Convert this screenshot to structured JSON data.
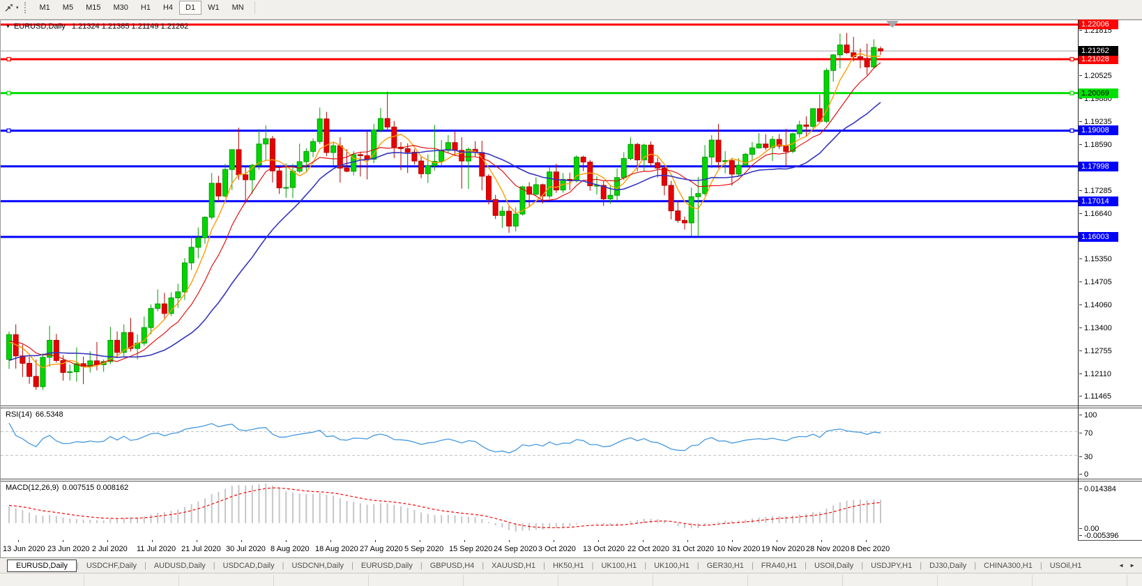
{
  "toolbar": {
    "timeframes": [
      "M1",
      "M5",
      "M15",
      "M30",
      "H1",
      "H4",
      "D1",
      "W1",
      "MN"
    ],
    "active_timeframe": "D1"
  },
  "chart": {
    "symbol_label": "EURUSD,Daily",
    "quote_text": "1.21324 1.21385 1.21149 1.21262"
  },
  "price_axis": {
    "ticks": [
      "1.21815",
      "1.20525",
      "1.19880",
      "1.19235",
      "1.18590",
      "1.17285",
      "1.16640",
      "1.15350",
      "1.14705",
      "1.14060",
      "1.13400",
      "1.12755",
      "1.12110",
      "1.11465"
    ],
    "current_price_label": "1.21262"
  },
  "rsi_panel": {
    "name": "RSI(14)",
    "value": "66.5348",
    "axis_labels": [
      "100",
      "70",
      "30",
      "0"
    ],
    "axis_values": [
      100,
      70,
      30,
      0
    ],
    "levels": [
      70,
      30
    ],
    "line_color": "#4498DF"
  },
  "macd_panel": {
    "name": "MACD(12,26,9)",
    "values_text": "0.007515 0.008162",
    "axis_labels": [
      "0.014384",
      "0.00",
      "-0.005396"
    ],
    "axis_values": [
      0.014384,
      0,
      -0.005396
    ],
    "histogram_color": "#C6C6C6",
    "signal_color": "#FF0000"
  },
  "date_axis": [
    "13 Jun 2020",
    "23 Jun 2020",
    "2 Jul 2020",
    "11 Jul 2020",
    "21 Jul 2020",
    "30 Jul 2020",
    "8 Aug 2020",
    "18 Aug 2020",
    "27 Aug 2020",
    "5 Sep 2020",
    "15 Sep 2020",
    "24 Sep 2020",
    "3 Oct 2020",
    "13 Oct 2020",
    "22 Oct 2020",
    "31 Oct 2020",
    "10 Nov 2020",
    "19 Nov 2020",
    "28 Nov 2020",
    "8 Dec 2020"
  ],
  "tabs": [
    "EURUSD,Daily",
    "USDCHF,Daily",
    "AUDUSD,Daily",
    "USDCAD,Daily",
    "USDCNH,Daily",
    "EURUSD,Daily",
    "GBPUSD,H4",
    "XAUUSD,H1",
    "HK50,H1",
    "UK100,H1",
    "UK100,H1",
    "GER30,H1",
    "FRA40,H1",
    "USOil,Daily",
    "USDJPY,H1",
    "DJ30,Daily",
    "CHINA300,H1",
    "USOil,H1"
  ],
  "active_tab_index": 0,
  "chart_data": {
    "type": "candlestick",
    "symbol": "EURUSD",
    "timeframe": "Daily",
    "visible_price_range": [
      1.1124,
      1.2215
    ],
    "bull_color": "#00D500",
    "bull_border": "#009C00",
    "bear_color": "#E80000",
    "bear_border": "#B40000",
    "current_price": 1.21262,
    "current_price_line_color": "#9C9C9C",
    "horizontal_lines": [
      {
        "price": 1.22006,
        "label": "1.22006",
        "color": "#FF0000",
        "text_color": "#FFFFFF",
        "handles": false
      },
      {
        "price": 1.21028,
        "label": "1.21028",
        "color": "#FF0000",
        "text_color": "#FFFFFF",
        "handles": true
      },
      {
        "price": 1.20069,
        "label": "1.20069",
        "color": "#00E000",
        "text_color": "#000000",
        "handles": true
      },
      {
        "price": 1.19008,
        "label": "1.19008",
        "color": "#0000FF",
        "text_color": "#FFFFFF",
        "handles": true
      },
      {
        "price": 1.17998,
        "label": "1.17998",
        "color": "#0000FF",
        "text_color": "#FFFFFF",
        "handles": false
      },
      {
        "price": 1.17014,
        "label": "1.17014",
        "color": "#0000FF",
        "text_color": "#FFFFFF",
        "handles": false
      },
      {
        "price": 1.16003,
        "label": "1.16003",
        "color": "#0000FF",
        "text_color": "#FFFFFF",
        "handles": false
      }
    ],
    "moving_averages": [
      {
        "name": "ma-fast",
        "type": "SMA",
        "period": 5,
        "color": "#FF9B00",
        "width": 1.4
      },
      {
        "name": "ma-medium",
        "type": "SMA",
        "period": 10,
        "color": "#E00000",
        "width": 1.1
      },
      {
        "name": "ma-slow",
        "type": "SMA",
        "period": 21,
        "color": "#3434BE",
        "width": 1.6
      }
    ],
    "indicators": [
      {
        "type": "RSI",
        "period": 14,
        "value": 66.5348,
        "levels": [
          70,
          30
        ]
      },
      {
        "type": "MACD",
        "fast": 12,
        "slow": 26,
        "signal": 9,
        "macd_value": 0.007515,
        "signal_value": 0.008162,
        "axis_max": 0.014384,
        "axis_min": -0.005396
      }
    ],
    "warmup_closes": [
      1.098,
      1.1,
      1.102,
      1.104,
      1.106,
      1.1075,
      1.1085,
      1.1095,
      1.11,
      1.111,
      1.112,
      1.114,
      1.116,
      1.118,
      1.12,
      1.1215,
      1.1225,
      1.1232,
      1.1238,
      1.124,
      1.126,
      1.128,
      1.13,
      1.1315,
      1.133,
      1.1318,
      1.13,
      1.129,
      1.1296,
      1.1304
    ],
    "candles": [
      [
        1.1254,
        1.1333,
        1.1227,
        1.1324
      ],
      [
        1.1324,
        1.1353,
        1.1228,
        1.1264
      ],
      [
        1.1264,
        1.1296,
        1.1204,
        1.1243
      ],
      [
        1.1243,
        1.1262,
        1.1185,
        1.1206
      ],
      [
        1.1206,
        1.1254,
        1.1168,
        1.1177
      ],
      [
        1.1177,
        1.1271,
        1.1168,
        1.126
      ],
      [
        1.126,
        1.1349,
        1.1233,
        1.1308
      ],
      [
        1.1308,
        1.1326,
        1.1245,
        1.1251
      ],
      [
        1.1251,
        1.1266,
        1.1194,
        1.1217
      ],
      [
        1.1217,
        1.124,
        1.1194,
        1.1219
      ],
      [
        1.1219,
        1.1288,
        1.1191,
        1.1242
      ],
      [
        1.1242,
        1.1262,
        1.1184,
        1.1234
      ],
      [
        1.1234,
        1.1277,
        1.1217,
        1.125
      ],
      [
        1.125,
        1.1303,
        1.1223,
        1.1239
      ],
      [
        1.1239,
        1.1254,
        1.1219,
        1.1248
      ],
      [
        1.1248,
        1.1346,
        1.1241,
        1.1308
      ],
      [
        1.1308,
        1.1333,
        1.1259,
        1.1274
      ],
      [
        1.1274,
        1.1353,
        1.1263,
        1.133
      ],
      [
        1.133,
        1.1371,
        1.1276,
        1.1285
      ],
      [
        1.1285,
        1.1325,
        1.1254,
        1.13
      ],
      [
        1.13,
        1.1375,
        1.1292,
        1.1344
      ],
      [
        1.1344,
        1.1409,
        1.1325,
        1.1398
      ],
      [
        1.1398,
        1.1452,
        1.139,
        1.1411
      ],
      [
        1.1411,
        1.1442,
        1.137,
        1.1384
      ],
      [
        1.1384,
        1.1444,
        1.1377,
        1.1428
      ],
      [
        1.1428,
        1.1468,
        1.14,
        1.1445
      ],
      [
        1.1445,
        1.154,
        1.1422,
        1.1527
      ],
      [
        1.1527,
        1.1601,
        1.1507,
        1.1571
      ],
      [
        1.1571,
        1.1627,
        1.154,
        1.1598
      ],
      [
        1.1598,
        1.1658,
        1.1581,
        1.1656
      ],
      [
        1.1656,
        1.1781,
        1.165,
        1.1752
      ],
      [
        1.1752,
        1.1773,
        1.1701,
        1.1716
      ],
      [
        1.1716,
        1.1807,
        1.1712,
        1.1791
      ],
      [
        1.1791,
        1.1847,
        1.1733,
        1.1847
      ],
      [
        1.1847,
        1.1909,
        1.1762,
        1.1776
      ],
      [
        1.1776,
        1.1797,
        1.1696,
        1.1762
      ],
      [
        1.1762,
        1.1807,
        1.1722,
        1.1803
      ],
      [
        1.1803,
        1.1905,
        1.179,
        1.1863
      ],
      [
        1.1863,
        1.1916,
        1.1817,
        1.1878
      ],
      [
        1.1878,
        1.1886,
        1.1754,
        1.1787
      ],
      [
        1.1787,
        1.1798,
        1.1722,
        1.1739
      ],
      [
        1.1739,
        1.1808,
        1.1711,
        1.174
      ],
      [
        1.174,
        1.1807,
        1.171,
        1.1786
      ],
      [
        1.1786,
        1.1864,
        1.1781,
        1.1813
      ],
      [
        1.1813,
        1.1851,
        1.1783,
        1.1842
      ],
      [
        1.1842,
        1.1879,
        1.1826,
        1.187
      ],
      [
        1.187,
        1.1966,
        1.1863,
        1.1934
      ],
      [
        1.1934,
        1.1954,
        1.1829,
        1.1839
      ],
      [
        1.1839,
        1.1869,
        1.1801,
        1.1858
      ],
      [
        1.1858,
        1.1882,
        1.1754,
        1.1795
      ],
      [
        1.1795,
        1.1848,
        1.1783,
        1.1786
      ],
      [
        1.1786,
        1.1843,
        1.1774,
        1.1833
      ],
      [
        1.1833,
        1.1839,
        1.1771,
        1.183
      ],
      [
        1.183,
        1.1901,
        1.1763,
        1.182
      ],
      [
        1.182,
        1.192,
        1.1809,
        1.1903
      ],
      [
        1.1903,
        1.1965,
        1.1896,
        1.1935
      ],
      [
        1.1935,
        1.2011,
        1.1901,
        1.1911
      ],
      [
        1.1911,
        1.1928,
        1.1823,
        1.1854
      ],
      [
        1.1854,
        1.1868,
        1.1789,
        1.185
      ],
      [
        1.185,
        1.1865,
        1.1781,
        1.184
      ],
      [
        1.184,
        1.1849,
        1.1805,
        1.1815
      ],
      [
        1.1815,
        1.1827,
        1.1766,
        1.1779
      ],
      [
        1.1779,
        1.1834,
        1.1753,
        1.1802
      ],
      [
        1.1802,
        1.1917,
        1.1788,
        1.1814
      ],
      [
        1.1814,
        1.1874,
        1.18,
        1.1845
      ],
      [
        1.1845,
        1.1888,
        1.1839,
        1.1867
      ],
      [
        1.1867,
        1.19,
        1.1829,
        1.1845
      ],
      [
        1.1845,
        1.1882,
        1.1737,
        1.1815
      ],
      [
        1.1815,
        1.1853,
        1.1736,
        1.1848
      ],
      [
        1.1848,
        1.1871,
        1.1827,
        1.1839
      ],
      [
        1.1839,
        1.1872,
        1.1732,
        1.1772
      ],
      [
        1.1772,
        1.1778,
        1.1692,
        1.1706
      ],
      [
        1.1706,
        1.1719,
        1.1651,
        1.1661
      ],
      [
        1.1661,
        1.1686,
        1.1626,
        1.1673
      ],
      [
        1.1673,
        1.1688,
        1.1612,
        1.1631
      ],
      [
        1.1631,
        1.1684,
        1.1616,
        1.1665
      ],
      [
        1.1665,
        1.1745,
        1.1661,
        1.1742
      ],
      [
        1.1742,
        1.1755,
        1.1684,
        1.1721
      ],
      [
        1.1721,
        1.1769,
        1.1717,
        1.1748
      ],
      [
        1.1748,
        1.1751,
        1.1695,
        1.1716
      ],
      [
        1.1716,
        1.1797,
        1.1708,
        1.1784
      ],
      [
        1.1784,
        1.1807,
        1.1725,
        1.1733
      ],
      [
        1.1733,
        1.1781,
        1.1725,
        1.1763
      ],
      [
        1.1763,
        1.1782,
        1.1733,
        1.176
      ],
      [
        1.176,
        1.1831,
        1.1754,
        1.1826
      ],
      [
        1.1826,
        1.183,
        1.1786,
        1.1812
      ],
      [
        1.1812,
        1.1818,
        1.1731,
        1.1745
      ],
      [
        1.1745,
        1.1772,
        1.172,
        1.1746
      ],
      [
        1.1746,
        1.1758,
        1.1688,
        1.1708
      ],
      [
        1.1708,
        1.1745,
        1.1694,
        1.1718
      ],
      [
        1.1718,
        1.1794,
        1.1703,
        1.1768
      ],
      [
        1.1768,
        1.184,
        1.1761,
        1.1822
      ],
      [
        1.1822,
        1.1881,
        1.1817,
        1.1862
      ],
      [
        1.1862,
        1.1866,
        1.1786,
        1.1818
      ],
      [
        1.1818,
        1.1864,
        1.1786,
        1.186
      ],
      [
        1.186,
        1.187,
        1.18,
        1.181
      ],
      [
        1.181,
        1.1824,
        1.1768,
        1.1795
      ],
      [
        1.1795,
        1.18,
        1.1718,
        1.1746
      ],
      [
        1.1746,
        1.1759,
        1.165,
        1.1674
      ],
      [
        1.1674,
        1.1704,
        1.164,
        1.1647
      ],
      [
        1.1647,
        1.1658,
        1.1621,
        1.164
      ],
      [
        1.164,
        1.174,
        1.1603,
        1.1714
      ],
      [
        1.1714,
        1.177,
        1.1602,
        1.1723
      ],
      [
        1.1723,
        1.186,
        1.1717,
        1.1826
      ],
      [
        1.1826,
        1.1888,
        1.1795,
        1.1874
      ],
      [
        1.1874,
        1.192,
        1.1795,
        1.1813
      ],
      [
        1.1813,
        1.1843,
        1.178,
        1.1816
      ],
      [
        1.1816,
        1.1824,
        1.1745,
        1.1778
      ],
      [
        1.1778,
        1.1823,
        1.1771,
        1.1803
      ],
      [
        1.1803,
        1.1838,
        1.1799,
        1.1834
      ],
      [
        1.1834,
        1.1869,
        1.1814,
        1.1852
      ],
      [
        1.1852,
        1.1894,
        1.185,
        1.1863
      ],
      [
        1.1863,
        1.1891,
        1.1846,
        1.1853
      ],
      [
        1.1853,
        1.1885,
        1.1815,
        1.1876
      ],
      [
        1.1876,
        1.1891,
        1.1849,
        1.1857
      ],
      [
        1.1857,
        1.1906,
        1.18,
        1.1842
      ],
      [
        1.1842,
        1.1895,
        1.1837,
        1.1892
      ],
      [
        1.1892,
        1.1929,
        1.1881,
        1.1917
      ],
      [
        1.1917,
        1.1941,
        1.1886,
        1.1913
      ],
      [
        1.1913,
        1.1964,
        1.1907,
        1.1963
      ],
      [
        1.1963,
        1.2003,
        1.1923,
        1.1927
      ],
      [
        1.1927,
        1.2077,
        1.1922,
        1.2071
      ],
      [
        1.2071,
        1.2117,
        1.2039,
        1.2115
      ],
      [
        1.2115,
        1.2175,
        1.2077,
        1.2143
      ],
      [
        1.2143,
        1.2177,
        1.2117,
        1.2121
      ],
      [
        1.2121,
        1.2166,
        1.2097,
        1.211
      ],
      [
        1.211,
        1.2133,
        1.2077,
        1.2105
      ],
      [
        1.2105,
        1.2147,
        1.2058,
        1.2081
      ],
      [
        1.2081,
        1.2159,
        1.2076,
        1.2136
      ],
      [
        1.21324,
        1.21385,
        1.21149,
        1.21262
      ]
    ]
  }
}
